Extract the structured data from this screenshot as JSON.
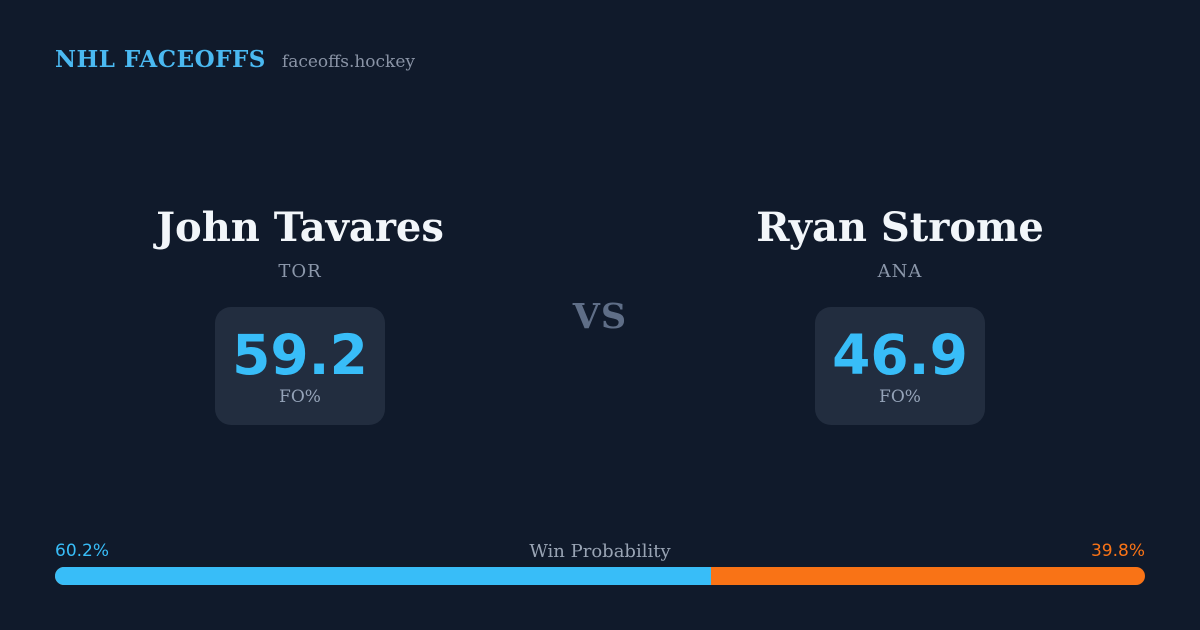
{
  "header": {
    "brand": "NHL FACEOFFS",
    "site": "faceoffs.hockey"
  },
  "matchup": {
    "vs_label": "VS",
    "left_player": {
      "name": "John Tavares",
      "team": "TOR",
      "stat_value": "59.2",
      "stat_label": "FO%"
    },
    "right_player": {
      "name": "Ryan Strome",
      "team": "ANA",
      "stat_value": "46.9",
      "stat_label": "FO%"
    }
  },
  "win_probability": {
    "title": "Win Probability",
    "left_pct_label": "60.2%",
    "right_pct_label": "39.8%",
    "left_value": 60.2,
    "right_value": 39.8,
    "left_color": "#38bdf8",
    "right_color": "#f97316"
  },
  "colors": {
    "background": "#101a2b",
    "card_background": "#222d3f",
    "accent_blue": "#38bdf8",
    "accent_orange": "#f97316",
    "brand_blue": "#4ab9f1",
    "text_primary": "#f2f6fa",
    "text_muted": "#8b97aa"
  }
}
